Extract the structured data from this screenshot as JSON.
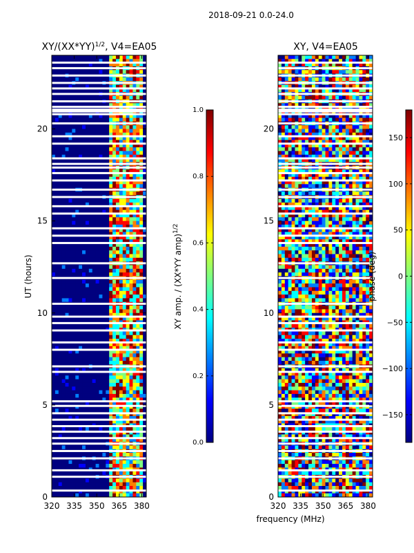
{
  "figure": {
    "title": "2018-09-21 0.0-24.0",
    "xlabel": "frequency (MHz)"
  },
  "colors": {
    "jet": [
      "#00007f",
      "#0000ff",
      "#007fff",
      "#00ffff",
      "#7fff7f",
      "#ffff00",
      "#ff7f00",
      "#ff0000",
      "#7f0000"
    ],
    "axis": "#000000",
    "flag": "#ffffff"
  },
  "chart_data": [
    {
      "type": "heatmap",
      "title": "XY/(XX*YY)",
      "title_sup": "1/2",
      "title_suffix": ", V4=EA05",
      "xlabel": "",
      "ylabel": "UT (hours)",
      "xlim": [
        320,
        383
      ],
      "ylim": [
        0,
        24
      ],
      "xticks": [
        320,
        335,
        350,
        365,
        380
      ],
      "yticks": [
        0,
        5,
        10,
        15,
        20
      ],
      "colorbar": {
        "label": "XY amp. / (XX*YY amp)",
        "label_sup": "1/2",
        "range": [
          0.0,
          1.0
        ],
        "ticks": [
          "0.0",
          "0.2",
          "0.4",
          "0.6",
          "0.8",
          "1.0"
        ]
      },
      "flagged_hours": [
        0.35,
        1.1,
        1.45,
        2.1,
        2.5,
        2.9,
        3.2,
        3.55,
        3.85,
        4.2,
        4.55,
        4.95,
        5.2,
        6.8,
        7.1,
        8.0,
        8.4,
        9.05,
        9.45,
        9.8,
        10.5,
        11.9,
        12.7,
        13.8,
        14.2,
        14.6,
        15.4,
        15.8,
        16.3,
        16.7,
        17.2,
        17.6,
        17.9,
        18.1,
        18.4,
        19.2,
        19.6,
        20.3,
        20.8,
        20.95,
        21.05,
        21.2,
        21.5,
        21.9,
        22.2,
        22.5,
        22.9,
        23.3,
        23.6
      ],
      "description_band_mhz": [
        359,
        380
      ]
    },
    {
      "type": "heatmap",
      "title": "XY, V4=EA05",
      "xlabel": "",
      "ylabel": "",
      "xlim": [
        320,
        383
      ],
      "ylim": [
        0,
        24
      ],
      "xticks": [
        320,
        335,
        350,
        365,
        380
      ],
      "yticks": [
        0,
        5,
        10,
        15,
        20
      ],
      "colorbar": {
        "label": "phase (deg)",
        "range": [
          -180,
          180
        ],
        "ticks": [
          "150",
          "100",
          "50",
          "0",
          "−50",
          "−100",
          "−150"
        ],
        "tick_values": [
          150,
          100,
          50,
          0,
          -50,
          -100,
          -150
        ]
      },
      "flagged_hours": [
        0.35,
        1.1,
        1.45,
        2.1,
        2.5,
        2.9,
        3.2,
        3.55,
        3.85,
        4.2,
        4.55,
        4.95,
        5.2,
        6.8,
        7.1,
        8.0,
        8.4,
        9.05,
        9.45,
        9.8,
        10.5,
        11.9,
        12.7,
        13.8,
        14.2,
        14.6,
        15.4,
        15.8,
        16.3,
        16.7,
        17.2,
        17.6,
        17.9,
        18.1,
        18.4,
        19.2,
        19.6,
        20.3,
        20.8,
        20.95,
        21.05,
        21.2,
        21.5,
        21.9,
        22.2,
        22.5,
        22.9,
        23.3,
        23.6
      ]
    }
  ]
}
